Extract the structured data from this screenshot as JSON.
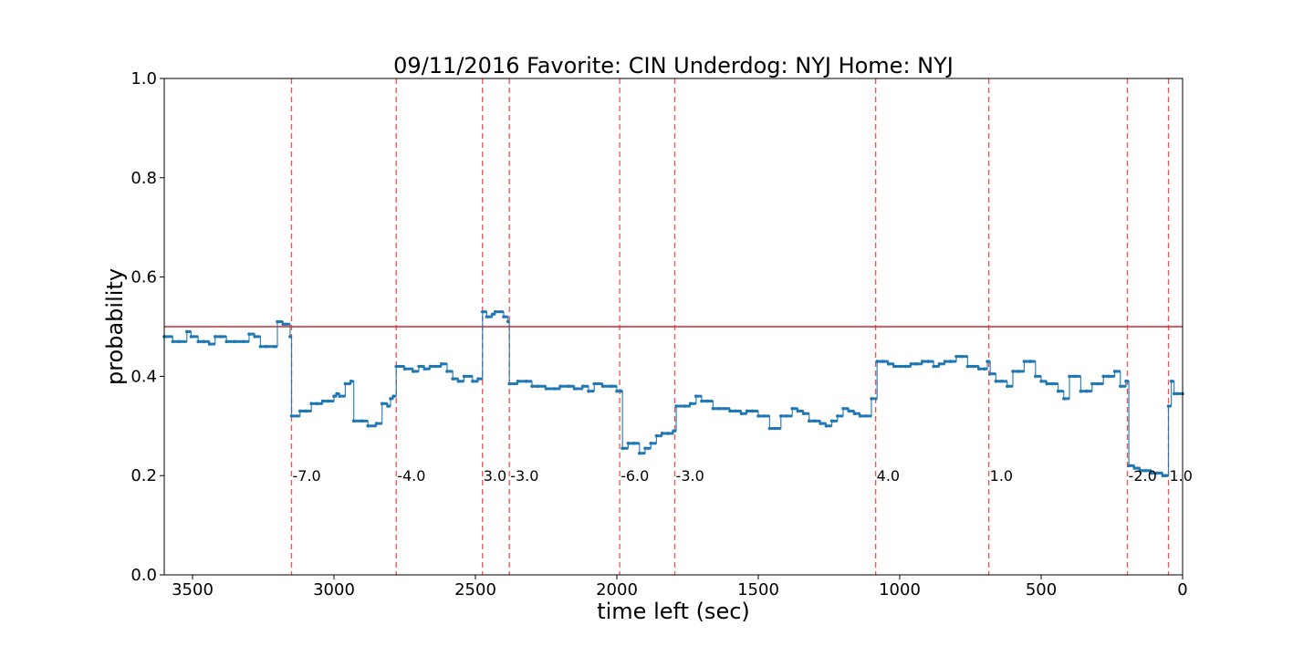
{
  "chart_data": {
    "type": "line",
    "title": "09/11/2016 Favorite: CIN Underdog: NYJ Home: NYJ",
    "xlabel": "time left (sec)",
    "ylabel": "probability",
    "xlim": [
      3600,
      0
    ],
    "ylim": [
      0.0,
      1.0
    ],
    "x_ticks": [
      3500,
      3000,
      2500,
      2000,
      1500,
      1000,
      500,
      0
    ],
    "y_ticks": [
      "0.0",
      "0.2",
      "0.4",
      "0.6",
      "0.8",
      "1.0"
    ],
    "x_tick_labels": [
      "3500",
      "3000",
      "2500",
      "2000",
      "1500",
      "1000",
      "500",
      "0"
    ],
    "grid": false,
    "reference_line": {
      "y": 0.5,
      "color": "#d62728"
    },
    "series": [
      {
        "color": "#1f77b4",
        "x": [
          3600,
          3570,
          3550,
          3520,
          3505,
          3480,
          3460,
          3440,
          3420,
          3400,
          3380,
          3350,
          3320,
          3300,
          3280,
          3260,
          3240,
          3210,
          3200,
          3180,
          3170,
          3155,
          3150,
          3120,
          3100,
          3080,
          3060,
          3040,
          3020,
          3000,
          2990,
          2980,
          2960,
          2940,
          2930,
          2900,
          2880,
          2850,
          2830,
          2810,
          2800,
          2790,
          2780,
          2750,
          2720,
          2700,
          2680,
          2660,
          2640,
          2620,
          2600,
          2580,
          2560,
          2540,
          2510,
          2490,
          2475,
          2460,
          2440,
          2430,
          2400,
          2385,
          2380,
          2350,
          2320,
          2300,
          2280,
          2250,
          2220,
          2200,
          2170,
          2150,
          2120,
          2100,
          2080,
          2050,
          2020,
          2000,
          1985,
          1980,
          1960,
          1940,
          1920,
          1900,
          1880,
          1860,
          1840,
          1820,
          1800,
          1790,
          1760,
          1740,
          1720,
          1700,
          1680,
          1660,
          1640,
          1620,
          1600,
          1580,
          1560,
          1540,
          1520,
          1500,
          1480,
          1460,
          1440,
          1420,
          1400,
          1380,
          1360,
          1340,
          1320,
          1300,
          1280,
          1260,
          1240,
          1220,
          1200,
          1180,
          1160,
          1140,
          1120,
          1100,
          1080,
          1060,
          1040,
          1020,
          1000,
          980,
          960,
          940,
          920,
          900,
          880,
          860,
          840,
          820,
          800,
          780,
          760,
          740,
          720,
          700,
          690,
          680,
          660,
          640,
          620,
          600,
          580,
          560,
          540,
          520,
          500,
          480,
          460,
          440,
          420,
          400,
          380,
          360,
          340,
          320,
          300,
          280,
          260,
          240,
          220,
          200,
          190,
          170,
          150,
          130,
          110,
          90,
          70,
          60,
          50,
          40,
          30,
          20,
          0
        ],
        "y": [
          0.48,
          0.47,
          0.47,
          0.49,
          0.48,
          0.47,
          0.47,
          0.465,
          0.48,
          0.48,
          0.47,
          0.47,
          0.47,
          0.485,
          0.48,
          0.46,
          0.46,
          0.46,
          0.51,
          0.505,
          0.505,
          0.48,
          0.32,
          0.33,
          0.33,
          0.345,
          0.345,
          0.35,
          0.35,
          0.36,
          0.365,
          0.36,
          0.385,
          0.39,
          0.31,
          0.31,
          0.3,
          0.305,
          0.345,
          0.34,
          0.355,
          0.36,
          0.42,
          0.415,
          0.41,
          0.42,
          0.415,
          0.42,
          0.42,
          0.425,
          0.41,
          0.395,
          0.39,
          0.4,
          0.39,
          0.395,
          0.53,
          0.52,
          0.525,
          0.53,
          0.52,
          0.51,
          0.385,
          0.39,
          0.39,
          0.38,
          0.38,
          0.375,
          0.375,
          0.38,
          0.38,
          0.375,
          0.38,
          0.37,
          0.385,
          0.38,
          0.38,
          0.37,
          0.37,
          0.255,
          0.265,
          0.265,
          0.245,
          0.255,
          0.265,
          0.28,
          0.285,
          0.285,
          0.29,
          0.34,
          0.34,
          0.345,
          0.36,
          0.35,
          0.35,
          0.335,
          0.335,
          0.335,
          0.33,
          0.33,
          0.325,
          0.33,
          0.33,
          0.32,
          0.32,
          0.295,
          0.295,
          0.32,
          0.32,
          0.335,
          0.33,
          0.325,
          0.31,
          0.31,
          0.305,
          0.3,
          0.31,
          0.32,
          0.335,
          0.33,
          0.325,
          0.32,
          0.32,
          0.355,
          0.43,
          0.43,
          0.425,
          0.42,
          0.42,
          0.42,
          0.425,
          0.425,
          0.43,
          0.43,
          0.42,
          0.425,
          0.43,
          0.43,
          0.44,
          0.44,
          0.42,
          0.42,
          0.415,
          0.415,
          0.43,
          0.405,
          0.39,
          0.39,
          0.38,
          0.41,
          0.41,
          0.43,
          0.43,
          0.4,
          0.39,
          0.385,
          0.385,
          0.37,
          0.355,
          0.4,
          0.4,
          0.37,
          0.37,
          0.385,
          0.385,
          0.4,
          0.4,
          0.41,
          0.38,
          0.39,
          0.22,
          0.215,
          0.21,
          0.21,
          0.205,
          0.205,
          0.2,
          0.2,
          0.34,
          0.39,
          0.365,
          0.365,
          0.365
        ]
      }
    ],
    "event_lines": [
      {
        "x": 3150,
        "label": "-7.0"
      },
      {
        "x": 2780,
        "label": "-4.0"
      },
      {
        "x": 2475,
        "label": "3.0"
      },
      {
        "x": 2380,
        "label": "-3.0"
      },
      {
        "x": 1990,
        "label": "-6.0"
      },
      {
        "x": 1795,
        "label": "-3.0"
      },
      {
        "x": 1085,
        "label": "4.0"
      },
      {
        "x": 685,
        "label": "1.0"
      },
      {
        "x": 195,
        "label": "-2.0"
      },
      {
        "x": 50,
        "label": "1.0"
      }
    ],
    "event_label_y": 0.2
  }
}
